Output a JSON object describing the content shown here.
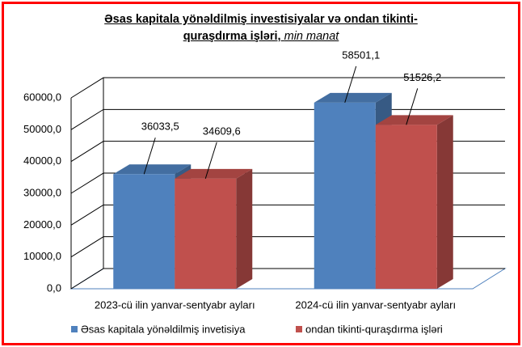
{
  "chart_data": {
    "type": "bar3d",
    "title": "Əsas kapitala yönəldilmiş investisiyalar və ondan tikinti-quraşdırma işləri,",
    "title_unit": "min manat",
    "categories": [
      "2023-cü ilin yanvar-sentyabr ayları",
      "2024-cü ilin yanvar-sentyabr ayları"
    ],
    "series": [
      {
        "name": "Əsas kapitala yönəldilmiş invetisiya",
        "color": "#4f81bd",
        "values": [
          36033.5,
          58501.1
        ],
        "value_labels": [
          "36033,5",
          "58501,1"
        ]
      },
      {
        "name": "ondan tikinti-quraşdırma işləri",
        "color": "#c0504d",
        "values": [
          34609.6,
          51526.2
        ],
        "value_labels": [
          "34609,6",
          "51526,2"
        ]
      }
    ],
    "ylim": [
      0,
      60000
    ],
    "yticks": [
      {
        "value": 0,
        "label": "0,0"
      },
      {
        "value": 10000,
        "label": "10000,0"
      },
      {
        "value": 20000,
        "label": "20000,0"
      },
      {
        "value": 30000,
        "label": "30000,0"
      },
      {
        "value": 40000,
        "label": "40000,0"
      },
      {
        "value": 50000,
        "label": "50000,0"
      },
      {
        "value": 60000,
        "label": "60000,0"
      }
    ],
    "grid": true
  }
}
